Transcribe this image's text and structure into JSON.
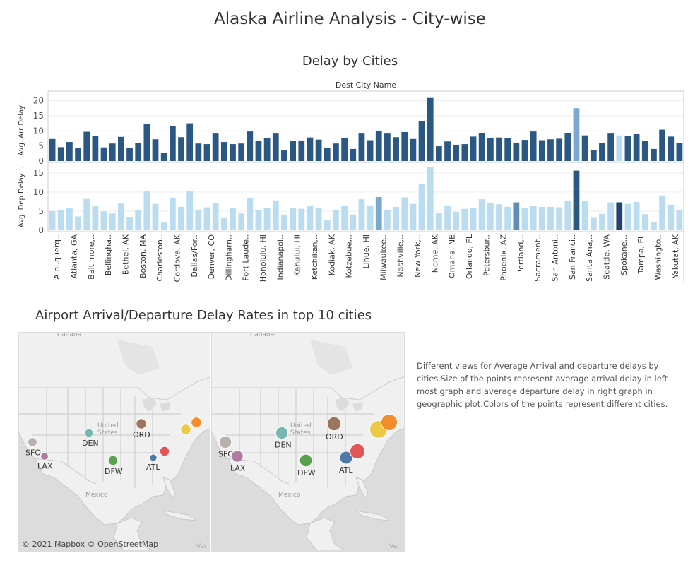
{
  "dashboard": {
    "title": "Alaska Airline Analysis - City-wise",
    "description": "Different views for Average Arrival and departure delays by cities.Size of the points represent average arrival delay in left most graph and average departure delay in right graph in geographic plot.Colors of the points represent different cities."
  },
  "chart_data": {
    "type": "bar",
    "title": "Delay by Cities",
    "column_header": "Dest City Name",
    "tick_labels": [
      "Albuquerq..",
      "Atlanta, GA",
      "Baltimore,..",
      "Bellingha..",
      "Bethel, AK",
      "Boston, MA",
      "Charleston..",
      "Cordova, AK",
      "Dallas/For..",
      "Denver, CO",
      "Dillingham..",
      "Fort Laude..",
      "Honolulu, HI",
      "Indianapol..",
      "Kahului, HI",
      "Ketchikan,..",
      "Kodiak, AK",
      "Kotzebue,..",
      "Lihue, HI",
      "Milwaukee..",
      "Nashville,..",
      "New York,..",
      "Nome, AK",
      "Omaha, NE",
      "Orlando, FL",
      "Petersbur..",
      "Phoenix, AZ",
      "Portland,..",
      "Sacrament..",
      "San Antoni..",
      "San Franci..",
      "Santa Ana,..",
      "Seattle, WA",
      "Spokane,..",
      "Tampa, FL",
      "Washingto..",
      "Yakutat, AK"
    ],
    "series": [
      {
        "name": "Avg. Arr Delay",
        "ylabel": "Avg. Arr Delay ..",
        "ylim": [
          0,
          22
        ],
        "yticks": [
          "0",
          "5",
          "10",
          "15",
          "20"
        ],
        "color": "#2a5783",
        "values": [
          7.3,
          4.6,
          6.3,
          4.3,
          9.7,
          8.3,
          4.5,
          5.8,
          8.0,
          4.4,
          6.0,
          12.3,
          7.2,
          2.7,
          11.5,
          7.9,
          12.5,
          5.8,
          5.6,
          9.1,
          6.3,
          5.6,
          5.8,
          9.8,
          6.8,
          7.5,
          9.1,
          3.5,
          6.6,
          6.8,
          7.8,
          7.1,
          4.3,
          5.8,
          7.6,
          4.0,
          9.1,
          6.9,
          9.9,
          9.1,
          7.9,
          9.6,
          7.3,
          13.2,
          20.9,
          4.9,
          6.5,
          5.4,
          5.6,
          8.1,
          9.3,
          7.7,
          7.8,
          7.6,
          6.1,
          7.0,
          9.8,
          6.9,
          7.2,
          7.4,
          9.2,
          17.5,
          8.5,
          3.6,
          6.0,
          9.1,
          8.5,
          8.3,
          8.9,
          6.7,
          4.0,
          10.4,
          8.1,
          5.9
        ],
        "bar_colors": {
          "61": "#7aa8cf",
          "66": "#b9dcf0"
        }
      },
      {
        "name": "Avg. Dep Delay",
        "ylabel": "Avg. Dep Delay ..",
        "ylim": [
          0,
          17
        ],
        "yticks": [
          "0",
          "5",
          "10",
          "15"
        ],
        "color": "#b9dcf0",
        "values": [
          5.0,
          5.4,
          5.7,
          3.6,
          8.2,
          6.4,
          4.9,
          4.4,
          7.0,
          3.5,
          5.3,
          10.2,
          6.9,
          2.0,
          8.4,
          6.1,
          10.2,
          5.4,
          6.0,
          7.2,
          3.2,
          5.8,
          4.4,
          8.4,
          5.2,
          5.9,
          7.8,
          4.1,
          5.8,
          5.6,
          6.4,
          5.9,
          2.7,
          5.3,
          6.3,
          4.1,
          8.1,
          6.4,
          8.7,
          5.3,
          6.1,
          8.6,
          6.9,
          12.1,
          16.5,
          4.6,
          6.4,
          4.8,
          5.6,
          5.8,
          8.1,
          7.1,
          6.8,
          6.1,
          7.3,
          5.9,
          6.4,
          6.1,
          6.1,
          6.0,
          7.8,
          15.6,
          7.6,
          3.4,
          4.3,
          7.3,
          7.3,
          6.9,
          7.4,
          4.2,
          2.2,
          9.1,
          6.7,
          5.2
        ],
        "bar_colors": {
          "38": "#7aa8cf",
          "54": "#5f8cb8",
          "61": "#2a5783",
          "66": "#23456b"
        }
      }
    ],
    "grid": true
  },
  "map_section": {
    "title": "Airport Arrival/Departure Delay Rates in top 10 cities",
    "credit": "© 2021 Mapbox  © OpenStreetMap",
    "country_labels": {
      "canada": "Canada",
      "us": "United States",
      "mexico": "Mexico"
    },
    "cities": [
      {
        "label": "SFO",
        "color": "#bab0ac",
        "arr_delay": 8.5,
        "dep_delay": 9.2
      },
      {
        "label": "LAX",
        "color": "#b07aa1",
        "arr_delay": 7.3,
        "dep_delay": 8.7
      },
      {
        "label": "DEN",
        "color": "#76b7b2",
        "arr_delay": 8.0,
        "dep_delay": 9.1
      },
      {
        "label": "DFW",
        "color": "#59a14f",
        "arr_delay": 9.1,
        "dep_delay": 9.3
      },
      {
        "label": "ORD",
        "color": "#9c755f",
        "arr_delay": 9.6,
        "dep_delay": 10.3
      },
      {
        "label": "ATL",
        "color": "#4e79a7",
        "arr_delay": 6.9,
        "dep_delay": 9.5
      },
      {
        "label": "",
        "color": "#e15759",
        "arr_delay": 9.1,
        "dep_delay": 11.2
      },
      {
        "label": "",
        "color": "#edc948",
        "arr_delay": 9.7,
        "dep_delay": 13.2
      },
      {
        "label": "",
        "color": "#f28e2b",
        "arr_delay": 9.8,
        "dep_delay": 12.2
      },
      {
        "label": "",
        "color": "#edc948",
        "arr_delay": 0,
        "dep_delay": 0
      }
    ]
  }
}
